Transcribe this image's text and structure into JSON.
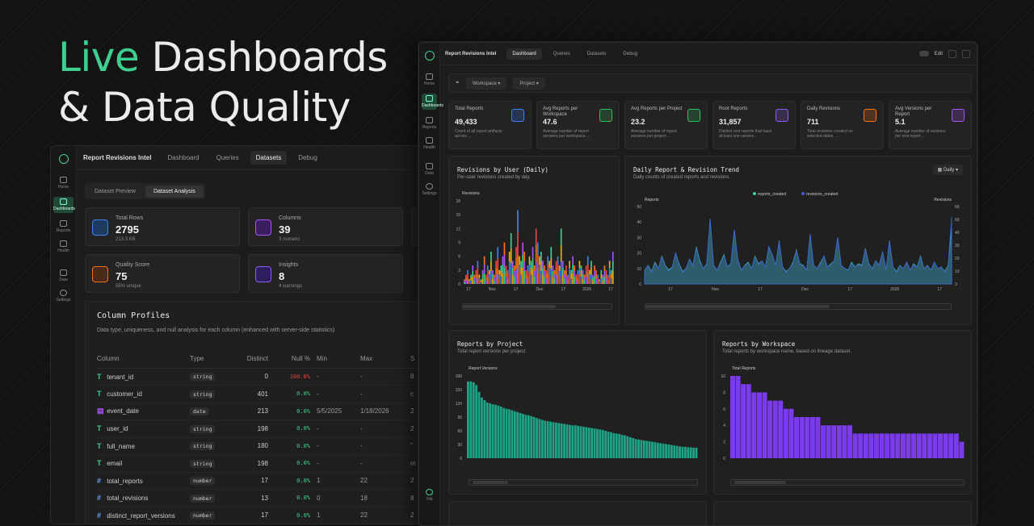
{
  "hero": {
    "line1_accent": "Live",
    "line1_rest": " Dashboards",
    "line2": "& Data Quality"
  },
  "left": {
    "nav": [
      {
        "label": "Home"
      },
      {
        "label": "Dashboards"
      },
      {
        "label": "Reports"
      },
      {
        "label": "Health"
      },
      {
        "label": "Data"
      },
      {
        "label": "Settings"
      }
    ],
    "app_title": "Report Revisions Intel",
    "tabs": [
      "Dashboard",
      "Queries",
      "Datasets",
      "Debug"
    ],
    "seg": [
      "Dataset Preview",
      "Dataset Analysis"
    ],
    "stats": [
      {
        "label": "Total Rows",
        "value": "2795",
        "sub": "213.3 KB",
        "color": "#3b82f6"
      },
      {
        "label": "Columns",
        "value": "39",
        "sub": "3 numeric",
        "color": "#a855f7"
      },
      {
        "label": "Quality Score",
        "value": "75",
        "sub": "55% unique",
        "color": "#f97316"
      },
      {
        "label": "Insights",
        "value": "8",
        "sub": "4 warnings",
        "color": "#8b5cf6"
      }
    ],
    "profiles": {
      "title": "Column Profiles",
      "subtitle": "Data type, uniqueness, and null analysis for each column (enhanced with server-side statistics)",
      "headers": [
        "Column",
        "Type",
        "Distinct",
        "Null %",
        "Min",
        "Max",
        "S"
      ],
      "rows": [
        {
          "name": "tenant_id",
          "type": "string",
          "distinct": "0",
          "nullp": "100.0%",
          "min": "-",
          "max": "-",
          "s": "8"
        },
        {
          "name": "customer_id",
          "type": "string",
          "distinct": "401",
          "nullp": "0.0%",
          "min": "-",
          "max": "-",
          "s": "c"
        },
        {
          "name": "event_date",
          "type": "date",
          "distinct": "213",
          "nullp": "0.0%",
          "min": "5/5/2025",
          "max": "1/18/2026",
          "s": "2"
        },
        {
          "name": "user_id",
          "type": "string",
          "distinct": "198",
          "nullp": "0.0%",
          "min": "-",
          "max": "-",
          "s": "2"
        },
        {
          "name": "full_name",
          "type": "string",
          "distinct": "180",
          "nullp": "0.0%",
          "min": "-",
          "max": "-",
          "s": "\""
        },
        {
          "name": "email",
          "type": "string",
          "distinct": "198",
          "nullp": "0.0%",
          "min": "-",
          "max": "-",
          "s": "m"
        },
        {
          "name": "total_reports",
          "type": "number",
          "distinct": "17",
          "nullp": "0.0%",
          "min": "1",
          "max": "22",
          "s": "2"
        },
        {
          "name": "total_revisions",
          "type": "number",
          "distinct": "13",
          "nullp": "0.0%",
          "min": "0",
          "max": "18",
          "s": "8"
        },
        {
          "name": "distinct_report_versions",
          "type": "number",
          "distinct": "17",
          "nullp": "0.0%",
          "min": "1",
          "max": "22",
          "s": "2"
        }
      ]
    }
  },
  "right": {
    "nav": [
      {
        "label": "Home"
      },
      {
        "label": "Dashboards"
      },
      {
        "label": "Reports"
      },
      {
        "label": "Health"
      },
      {
        "label": "Data"
      },
      {
        "label": "Settings"
      },
      {
        "label": "Trik"
      }
    ],
    "app_title": "Report Revisions Intel",
    "tabs": [
      "Dashboard",
      "Queries",
      "Datasets",
      "Debug"
    ],
    "edit_label": "Edit",
    "filters": [
      "Workspace",
      "Project"
    ],
    "kpis": [
      {
        "label": "Total Reports",
        "value": "49,433",
        "desc": "Count of all report artifacts across ...",
        "color": "#3b82f6"
      },
      {
        "label": "Avg Reports per Workspace",
        "value": "47.6",
        "desc": "Average number of report versions per workspace ...",
        "color": "#22c55e"
      },
      {
        "label": "Avg Reports per Project",
        "value": "23.2",
        "desc": "Average number of report versions per project ...",
        "color": "#22c55e"
      },
      {
        "label": "Root Reports",
        "value": "31,857",
        "desc": "Distinct root reports that have at least one version...",
        "color": "#8b5cf6"
      },
      {
        "label": "Daily Revisions",
        "value": "711",
        "desc": "Total revisions created on selected dates, ...",
        "color": "#f97316"
      },
      {
        "label": "Avg Versions per Report",
        "value": "5.1",
        "desc": "Average number of versions per root report ...",
        "color": "#a855f7"
      }
    ],
    "panels": {
      "p1_title": "Revisions by User (Daily)",
      "p1_sub": "Per-user revisions created by day.",
      "p2_title": "Daily Report & Revision Trend",
      "p2_sub": "Daily counts of created reports and revisions.",
      "p2_select": "Daily",
      "p3_title": "Reports by Project",
      "p3_sub": "Total report versions per project.",
      "p4_title": "Reports by Workspace",
      "p4_sub": "Total reports by workspace name, based on lineage dataset."
    }
  },
  "chart_data": [
    {
      "type": "bar",
      "title": "Revisions by User (Daily)",
      "ylabel": "Revisions",
      "ylim": [
        0,
        18
      ],
      "yticks": [
        0,
        3,
        6,
        9,
        12,
        15,
        18
      ],
      "xticks": [
        "17",
        "Nov",
        "17",
        "Dec",
        "17",
        "2026",
        "17"
      ],
      "stacked": true,
      "values": [
        1,
        2,
        3,
        1,
        2,
        4,
        2,
        3,
        5,
        2,
        1,
        3,
        6,
        2,
        4,
        3,
        7,
        3,
        2,
        5,
        8,
        3,
        4,
        6,
        9,
        4,
        3,
        7,
        11,
        5,
        4,
        8,
        16,
        6,
        5,
        9,
        7,
        3,
        4,
        6,
        5,
        8,
        4,
        12,
        9,
        6,
        7,
        5,
        4,
        3,
        6,
        5,
        8,
        4,
        3,
        5,
        6,
        4,
        12,
        5,
        3,
        4,
        2,
        5,
        3,
        6,
        4,
        2,
        3,
        5,
        4,
        3,
        2,
        4,
        6,
        3,
        5,
        2,
        4,
        3,
        2,
        1,
        3,
        2,
        4,
        3,
        2,
        5,
        3,
        7
      ]
    },
    {
      "type": "area",
      "title": "Daily Report & Revision Trend",
      "ylabel": "Reports",
      "ylabel_right": "Revisions",
      "ylim": [
        0,
        50
      ],
      "ylim_right": [
        0,
        60
      ],
      "xticks": [
        "17",
        "Nov",
        "17",
        "Dec",
        "17",
        "2026",
        "17"
      ],
      "series": [
        {
          "name": "reports_created",
          "color": "#3ecf8e",
          "values": [
            9,
            12,
            8,
            14,
            10,
            18,
            12,
            9,
            11,
            20,
            13,
            8,
            10,
            16,
            12,
            24,
            15,
            10,
            13,
            42,
            12,
            9,
            14,
            19,
            11,
            13,
            35,
            16,
            9,
            12,
            14,
            10,
            18,
            13,
            15,
            11,
            24,
            19,
            12,
            28,
            11,
            8,
            10,
            14,
            22,
            13,
            12,
            9,
            32,
            12,
            10,
            14,
            18,
            11,
            13,
            15,
            30,
            12,
            10,
            9,
            14,
            11,
            13,
            12,
            23,
            13,
            10,
            15,
            12,
            21,
            9,
            28,
            11,
            8,
            12,
            10,
            14,
            9,
            13,
            11,
            18,
            10,
            12,
            9,
            14,
            10,
            11,
            8,
            12,
            36
          ]
        },
        {
          "name": "revisions_created",
          "color": "#3b5bdb",
          "values": [
            11,
            14,
            9,
            16,
            12,
            21,
            14,
            10,
            13,
            24,
            15,
            9,
            12,
            19,
            14,
            28,
            17,
            12,
            15,
            50,
            14,
            11,
            16,
            22,
            13,
            15,
            42,
            19,
            11,
            14,
            16,
            12,
            21,
            15,
            18,
            13,
            29,
            23,
            14,
            33,
            13,
            9,
            12,
            16,
            26,
            15,
            14,
            11,
            39,
            14,
            12,
            16,
            22,
            13,
            15,
            18,
            36,
            14,
            12,
            11,
            16,
            13,
            15,
            14,
            27,
            15,
            12,
            18,
            14,
            25,
            11,
            33,
            13,
            9,
            14,
            12,
            17,
            11,
            15,
            13,
            21,
            12,
            14,
            11,
            17,
            12,
            13,
            9,
            14,
            52
          ]
        }
      ]
    },
    {
      "type": "bar",
      "title": "Reports by Project",
      "ylabel": "Report Versions",
      "ylim": [
        0,
        180
      ],
      "yticks": [
        0,
        30,
        60,
        90,
        120,
        150,
        180
      ],
      "values": [
        168,
        168,
        166,
        160,
        145,
        133,
        127,
        122,
        120,
        118,
        117,
        115,
        113,
        110,
        108,
        107,
        105,
        103,
        101,
        99,
        97,
        95,
        94,
        92,
        90,
        88,
        86,
        84,
        82,
        81,
        80,
        79,
        78,
        77,
        76,
        75,
        74,
        73,
        72,
        72,
        71,
        70,
        69,
        68,
        67,
        66,
        65,
        64,
        63,
        62,
        60,
        58,
        57,
        55,
        54,
        53,
        51,
        50,
        48,
        46,
        44,
        42,
        41,
        40,
        39,
        38,
        37,
        36,
        35,
        34,
        33,
        32,
        31,
        30,
        29,
        28,
        27,
        26,
        25,
        25,
        24,
        24,
        23,
        23
      ]
    },
    {
      "type": "bar",
      "title": "Reports by Workspace",
      "ylabel": "Total Reports",
      "ylim": [
        0,
        10
      ],
      "yticks": [
        0,
        2,
        4,
        6,
        8,
        10
      ],
      "values": [
        10,
        10,
        9,
        9,
        8,
        8,
        8,
        7,
        7,
        7,
        6,
        6,
        5,
        5,
        5,
        5,
        5,
        4,
        4,
        4,
        4,
        4,
        4,
        3,
        3,
        3,
        3,
        3,
        3,
        3,
        3,
        3,
        3,
        3,
        3,
        3,
        3,
        3,
        3,
        3,
        3,
        3,
        3,
        2
      ]
    }
  ]
}
